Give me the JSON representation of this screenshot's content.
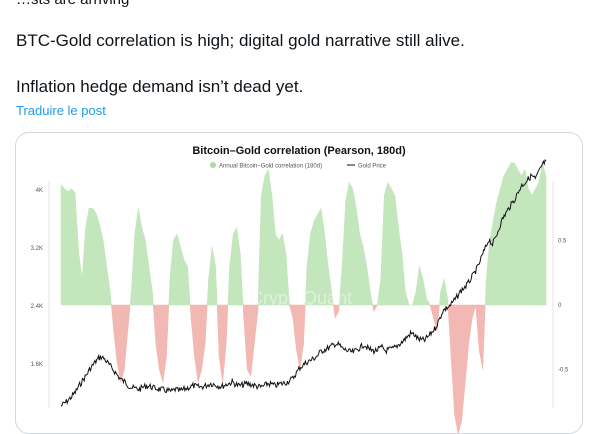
{
  "post": {
    "clipped_line": "…sts are arriving",
    "paragraphs": [
      "BTC-Gold correlation is high; digital gold narrative still alive.",
      "Inflation hedge demand isn’t dead yet."
    ],
    "translate_link": "Traduire le post"
  },
  "colors": {
    "positive_fill": "#c3e6bd",
    "negative_fill": "#f2b8b3",
    "gold_line": "#111111",
    "link": "#1d9bf0"
  },
  "chart_data": {
    "type": "area",
    "title": "Bitcoin–Gold correlation (Pearson, 180d)",
    "watermark": "CryptoQuant",
    "legend_position": "top-center",
    "series": [
      {
        "name": "Annual Bitcoin–Gold correlation (180d)",
        "axis": "right",
        "kind": "area",
        "values": [
          0.93,
          0.9,
          0.88,
          0.9,
          0.87,
          0.42,
          0.2,
          0.6,
          0.75,
          0.75,
          0.71,
          0.62,
          0.5,
          0.3,
          0.1,
          -0.2,
          -0.45,
          -0.6,
          -0.5,
          -0.2,
          0.1,
          0.55,
          0.75,
          0.6,
          0.5,
          0.3,
          0.1,
          -0.3,
          -0.5,
          -0.6,
          -0.4,
          0.2,
          0.5,
          0.55,
          0.45,
          0.35,
          0.3,
          -0.1,
          -0.4,
          -0.6,
          -0.5,
          -0.3,
          0.2,
          0.45,
          0.3,
          -0.4,
          -0.6,
          -0.3,
          0.3,
          0.55,
          0.6,
          0.4,
          -0.1,
          -0.5,
          -0.55,
          -0.3,
          -0.05,
          0.85,
          1.0,
          1.05,
          0.85,
          0.55,
          0.5,
          0.55,
          0.4,
          0.0,
          -0.1,
          -0.35,
          -0.5,
          -0.3,
          0.3,
          0.55,
          0.65,
          0.7,
          0.75,
          0.55,
          0.3,
          0.1,
          -0.1,
          -0.05,
          0.3,
          0.8,
          0.95,
          0.9,
          0.75,
          0.55,
          0.45,
          0.3,
          0.1,
          -0.05,
          0.0,
          0.2,
          0.85,
          0.95,
          0.9,
          0.85,
          0.6,
          0.4,
          0.1,
          0.0,
          0.0,
          0.1,
          0.3,
          0.2,
          0.05,
          0.0,
          -0.1,
          -0.2,
          0.1,
          0.2,
          0.05,
          -0.4,
          -0.85,
          -1.0,
          -0.9,
          -0.6,
          -0.3,
          -0.1,
          0.0,
          -0.35,
          -0.5,
          0.2,
          0.5,
          0.65,
          0.8,
          0.9,
          1.0,
          1.05,
          1.1,
          1.1,
          1.05,
          1.0,
          1.05,
          0.9,
          0.85,
          0.9,
          0.95,
          1.1,
          1.0
        ]
      },
      {
        "name": "Gold Price",
        "axis": "left",
        "kind": "line",
        "values": [
          1020,
          1060,
          1100,
          1150,
          1210,
          1290,
          1370,
          1440,
          1520,
          1590,
          1650,
          1700,
          1680,
          1620,
          1560,
          1500,
          1430,
          1380,
          1350,
          1300,
          1270,
          1260,
          1250,
          1280,
          1300,
          1290,
          1270,
          1260,
          1250,
          1240,
          1230,
          1220,
          1250,
          1230,
          1240,
          1260,
          1280,
          1300,
          1290,
          1280,
          1290,
          1310,
          1330,
          1320,
          1300,
          1290,
          1310,
          1330,
          1350,
          1320,
          1300,
          1310,
          1330,
          1320,
          1310,
          1290,
          1280,
          1300,
          1330,
          1320,
          1300,
          1320,
          1330,
          1340,
          1370,
          1400,
          1480,
          1550,
          1590,
          1630,
          1650,
          1680,
          1720,
          1780,
          1800,
          1820,
          1850,
          1880,
          1860,
          1810,
          1790,
          1770,
          1760,
          1800,
          1830,
          1870,
          1820,
          1790,
          1780,
          1800,
          1830,
          1780,
          1800,
          1810,
          1840,
          1880,
          1920,
          1970,
          2020,
          2010,
          1950,
          1930,
          1930,
          1980,
          2040,
          2100,
          2200,
          2330,
          2370,
          2400,
          2460,
          2520,
          2600,
          2650,
          2700,
          2780,
          2860,
          2950,
          3080,
          3200,
          3320,
          3250,
          3360,
          3500,
          3620,
          3700,
          3780,
          3850,
          3950,
          4050,
          4100,
          4150,
          4200,
          4150,
          4250,
          4350,
          4400
        ]
      }
    ],
    "left_axis": {
      "ticks": [
        "4K",
        "3.2K",
        "2.4K",
        "1.6K"
      ],
      "tick_values": [
        4000,
        3200,
        2400,
        1600
      ],
      "range": [
        850,
        4300
      ]
    },
    "right_axis": {
      "ticks": [
        "0.5",
        "0",
        "-0.5"
      ],
      "tick_values": [
        0.5,
        0,
        -0.5
      ],
      "range": [
        -1.1,
        1.15
      ]
    }
  }
}
